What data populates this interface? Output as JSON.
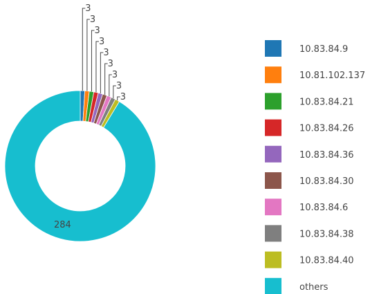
{
  "chart_data": {
    "type": "pie",
    "donut": true,
    "legend_placement": "right",
    "categories": [
      "10.83.84.9",
      "10.81.102.137",
      "10.83.84.21",
      "10.83.84.26",
      "10.83.84.36",
      "10.83.84.30",
      "10.83.84.6",
      "10.83.84.38",
      "10.83.84.40",
      "others"
    ],
    "values": [
      3,
      3,
      3,
      3,
      3,
      3,
      3,
      3,
      3,
      284
    ],
    "value_labels": [
      "3",
      "3",
      "3",
      "3",
      "3",
      "3",
      "3",
      "3",
      "3",
      "284"
    ],
    "colors": [
      "#1f77b4",
      "#ff7f0e",
      "#2ca02c",
      "#d62728",
      "#9467bd",
      "#8c564b",
      "#e377c2",
      "#7f7f7f",
      "#bcbd22",
      "#17becf"
    ]
  }
}
